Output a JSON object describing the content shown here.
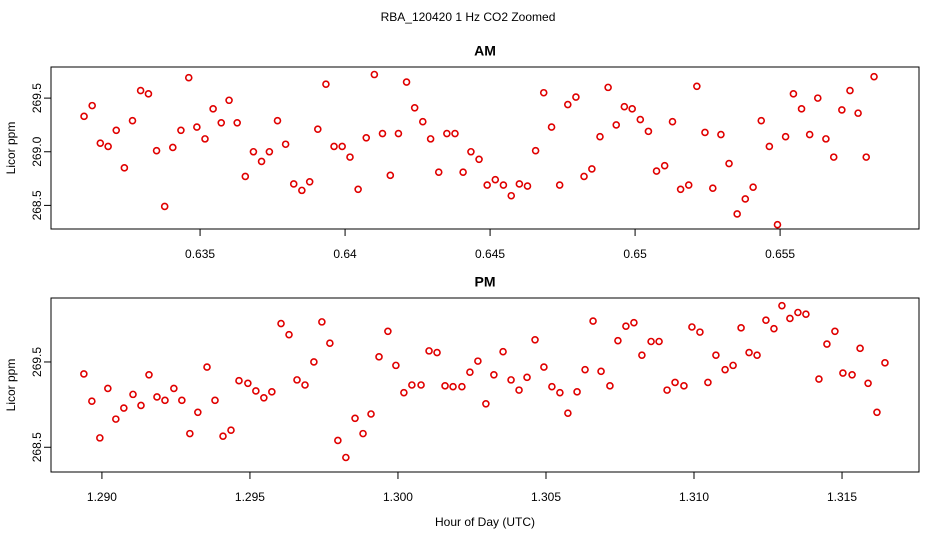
{
  "title": "RBA_120420  1 Hz CO2 Zoomed",
  "chart_data": [
    {
      "type": "scatter",
      "title": "AM",
      "y_label": "Licor ppm",
      "color": "#e00000",
      "x": [
        0.631,
        0.63128,
        0.63156,
        0.63183,
        0.63211,
        0.63239,
        0.63267,
        0.63295,
        0.63322,
        0.6335,
        0.63378,
        0.63406,
        0.63434,
        0.63461,
        0.63489,
        0.63517,
        0.63545,
        0.63573,
        0.636,
        0.63628,
        0.63656,
        0.63684,
        0.63712,
        0.63739,
        0.63767,
        0.63795,
        0.63823,
        0.63851,
        0.63878,
        0.63906,
        0.63934,
        0.63962,
        0.6399,
        0.64017,
        0.64045,
        0.64073,
        0.64101,
        0.64129,
        0.64156,
        0.64184,
        0.64212,
        0.6424,
        0.64268,
        0.64295,
        0.64323,
        0.64351,
        0.64379,
        0.64407,
        0.64434,
        0.64462,
        0.6449,
        0.64518,
        0.64546,
        0.64573,
        0.64601,
        0.64629,
        0.64657,
        0.64685,
        0.64712,
        0.6474,
        0.64768,
        0.64796,
        0.64824,
        0.64851,
        0.64879,
        0.64907,
        0.64935,
        0.64963,
        0.6499,
        0.65018,
        0.65046,
        0.65074,
        0.65102,
        0.65129,
        0.65157,
        0.65185,
        0.65213,
        0.65241,
        0.65268,
        0.65296,
        0.65324,
        0.65352,
        0.6538,
        0.65407,
        0.65435,
        0.65463,
        0.65491,
        0.65519,
        0.65546,
        0.65574,
        0.65602,
        0.6563,
        0.65658,
        0.65685,
        0.65713,
        0.65741,
        0.65769,
        0.65797,
        0.65824
      ],
      "values": [
        269.33,
        269.43,
        269.08,
        269.05,
        269.2,
        268.85,
        269.29,
        269.57,
        269.54,
        269.01,
        268.49,
        269.04,
        269.2,
        269.69,
        269.23,
        269.12,
        269.4,
        269.27,
        269.48,
        269.27,
        268.77,
        269.0,
        268.91,
        269.0,
        269.29,
        269.07,
        268.7,
        268.64,
        268.72,
        269.21,
        269.63,
        269.05,
        269.05,
        268.95,
        268.65,
        269.13,
        269.72,
        269.17,
        268.78,
        269.17,
        269.65,
        269.41,
        269.28,
        269.12,
        268.81,
        269.17,
        269.17,
        268.81,
        269.0,
        268.93,
        268.69,
        268.74,
        268.69,
        268.59,
        268.7,
        268.68,
        269.01,
        269.55,
        269.23,
        268.69,
        269.44,
        269.51,
        268.77,
        268.84,
        269.14,
        269.6,
        269.25,
        269.42,
        269.4,
        269.3,
        269.19,
        268.82,
        268.87,
        269.28,
        268.65,
        268.69,
        269.61,
        269.18,
        268.66,
        269.16,
        268.89,
        268.42,
        268.56,
        268.67,
        269.29,
        269.05,
        268.32,
        269.14,
        269.54,
        269.4,
        269.16,
        269.5,
        269.12,
        268.95,
        269.39,
        269.57,
        269.36,
        268.95,
        269.7
      ],
      "xlim": [
        0.62986,
        0.65979
      ],
      "ylim": [
        268.28,
        269.79
      ],
      "xticks": [
        0.635,
        0.64,
        0.645,
        0.65,
        0.655
      ],
      "yticks": [
        268.5,
        {
          "value": 269,
          "label": "269.0"
        },
        269.5
      ]
    },
    {
      "type": "scatter",
      "title": "PM",
      "y_label": "Licor ppm",
      "x_label": "Hour of Day (UTC)",
      "color": "#e00000",
      "x": [
        1.28939,
        1.28966,
        1.28993,
        1.2902,
        1.29047,
        1.29074,
        1.29105,
        1.29132,
        1.29159,
        1.29186,
        1.29213,
        1.29243,
        1.2927,
        1.29297,
        1.29324,
        1.29355,
        1.29382,
        1.29409,
        1.29436,
        1.29463,
        1.29493,
        1.2952,
        1.29547,
        1.29574,
        1.29605,
        1.29632,
        1.29659,
        1.29686,
        1.29716,
        1.29743,
        1.2977,
        1.29797,
        1.29824,
        1.29855,
        1.29882,
        1.29909,
        1.29936,
        1.29966,
        1.29993,
        1.3002,
        1.30047,
        1.30078,
        1.30105,
        1.30132,
        1.30159,
        1.30186,
        1.30216,
        1.30243,
        1.3027,
        1.30297,
        1.30324,
        1.30355,
        1.30382,
        1.30409,
        1.30436,
        1.30463,
        1.30493,
        1.3052,
        1.30547,
        1.30574,
        1.30605,
        1.30632,
        1.30659,
        1.30686,
        1.30716,
        1.30743,
        1.3077,
        1.30797,
        1.30824,
        1.30855,
        1.30882,
        1.30909,
        1.30936,
        1.30966,
        1.30993,
        1.3102,
        1.31047,
        1.31074,
        1.31105,
        1.31132,
        1.31159,
        1.31186,
        1.31213,
        1.31243,
        1.3127,
        1.31297,
        1.31324,
        1.31351,
        1.31378,
        1.31422,
        1.31449,
        1.31476,
        1.31503,
        1.31534,
        1.31561,
        1.31588,
        1.31618,
        1.31645
      ],
      "values": [
        269.36,
        269.04,
        268.61,
        269.19,
        268.83,
        268.96,
        269.12,
        268.99,
        269.35,
        269.09,
        269.05,
        269.19,
        269.05,
        268.66,
        268.91,
        269.44,
        269.05,
        268.63,
        268.7,
        269.28,
        269.25,
        269.16,
        269.08,
        269.15,
        269.95,
        269.82,
        269.29,
        269.23,
        269.5,
        269.97,
        269.72,
        268.58,
        268.38,
        268.84,
        268.66,
        268.89,
        269.56,
        269.86,
        269.46,
        269.14,
        269.23,
        269.23,
        269.63,
        269.61,
        269.22,
        269.21,
        269.21,
        269.38,
        269.51,
        269.01,
        269.35,
        269.62,
        269.29,
        269.17,
        269.32,
        269.76,
        269.44,
        269.21,
        269.14,
        268.9,
        269.15,
        269.41,
        269.98,
        269.39,
        269.22,
        269.75,
        269.92,
        269.96,
        269.58,
        269.74,
        269.74,
        269.17,
        269.26,
        269.22,
        269.91,
        269.85,
        269.26,
        269.58,
        269.41,
        269.46,
        269.9,
        269.61,
        269.58,
        269.99,
        269.89,
        270.16,
        270.01,
        270.08,
        270.06,
        269.3,
        269.71,
        269.86,
        269.37,
        269.35,
        269.66,
        269.25,
        268.91,
        269.49
      ],
      "xlim": [
        1.28828,
        1.3176
      ],
      "ylim": [
        268.21,
        270.25
      ],
      "xticks": [
        {
          "value": 1.29,
          "label": "1.290"
        },
        1.295,
        {
          "value": 1.3,
          "label": "1.300"
        },
        1.305,
        {
          "value": 1.31,
          "label": "1.310"
        },
        1.315
      ],
      "yticks": [
        268.5,
        269.5
      ]
    }
  ]
}
